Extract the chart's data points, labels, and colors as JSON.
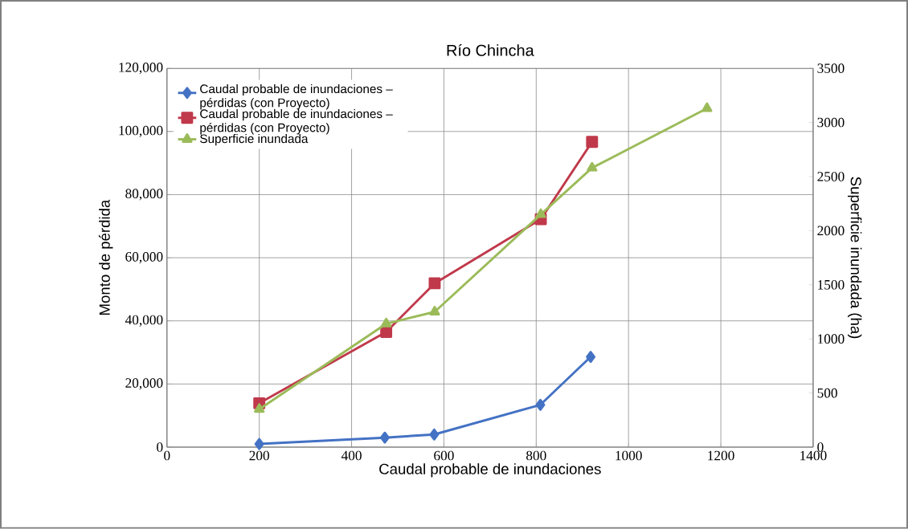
{
  "chart_data": {
    "type": "line",
    "title": "Río Chincha",
    "xlabel": "Caudal probable de inundaciones",
    "ylabel": "Monto de pérdida",
    "y2label": "Superficie inundada (ha)",
    "xlim": [
      0,
      1400
    ],
    "xticks": [
      0,
      200,
      400,
      600,
      800,
      1000,
      1200,
      1400
    ],
    "ylim": [
      0,
      120000
    ],
    "yticks": [
      0,
      {
        "value": 20000,
        "label": "20,000"
      },
      {
        "value": 40000,
        "label": "40,000"
      },
      {
        "value": 60000,
        "label": "60,000"
      },
      {
        "value": 80000,
        "label": "80,000"
      },
      {
        "value": 100000,
        "label": "100,000"
      },
      {
        "value": 120000,
        "label": "120,000"
      }
    ],
    "y2lim": [
      0,
      3500
    ],
    "y2ticks": [
      0,
      500,
      1000,
      1500,
      2000,
      2500,
      3000,
      3500
    ],
    "grid": true,
    "legend": "top left",
    "series": [
      {
        "name": "Caudal probable de inundaciones – pérdidas (con Proyecto)",
        "color": "#4472c4",
        "marker": "diamond",
        "x": [
          200,
          472,
          579,
          809,
          918
        ],
        "values": [
          1000,
          3000,
          4000,
          13400,
          28600
        ]
      },
      {
        "name": "Caudal probable de inundaciones – pérdidas (con Proyecto)",
        "color": "#c0394b",
        "marker": "square",
        "x": [
          200,
          475,
          580,
          810,
          921
        ],
        "values": [
          13900,
          36500,
          51900,
          72200,
          96700
        ]
      },
      {
        "name": "Superficie inundada",
        "color": "#9bbb59",
        "marker": "triangle",
        "axis": "y2",
        "x": [
          200,
          475,
          580,
          810,
          921,
          1170
        ],
        "values": [
          350,
          1140,
          1250,
          2150,
          2580,
          3130
        ]
      }
    ]
  }
}
